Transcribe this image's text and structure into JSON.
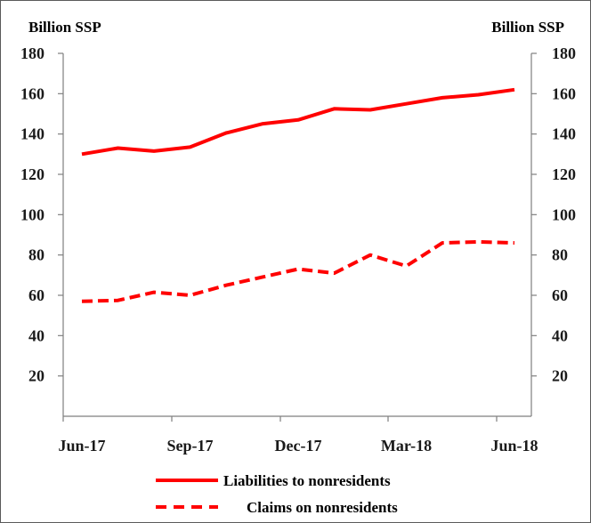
{
  "chart_data": {
    "type": "line",
    "left_unit_label": "Billion SSP",
    "right_unit_label": "Billion SSP",
    "x": [
      "Jun-17",
      "Jul-17",
      "Aug-17",
      "Sep-17",
      "Oct-17",
      "Nov-17",
      "Dec-17",
      "Jan-18",
      "Feb-18",
      "Mar-18",
      "Apr-18",
      "May-18",
      "Jun-18"
    ],
    "x_tick_labels": [
      "Jun-17",
      "Sep-17",
      "Dec-17",
      "Mar-18",
      "Jun-18"
    ],
    "y_ticks": [
      20,
      40,
      60,
      80,
      100,
      120,
      140,
      160,
      180
    ],
    "ylim": [
      0,
      180
    ],
    "series": [
      {
        "name": "Liabilities to nonresidents",
        "style": "solid",
        "color": "#ff0000",
        "values": [
          130,
          133,
          131.5,
          133.5,
          140.5,
          145,
          147,
          152.5,
          152,
          155,
          158,
          159.5,
          162
        ]
      },
      {
        "name": "Claims on nonresidents",
        "style": "dashed",
        "color": "#ff0000",
        "values": [
          57,
          57.5,
          61.5,
          60,
          65,
          69,
          73,
          71,
          80,
          74.5,
          86,
          86.5,
          86
        ]
      }
    ],
    "legend": "bottom",
    "grid": false
  }
}
